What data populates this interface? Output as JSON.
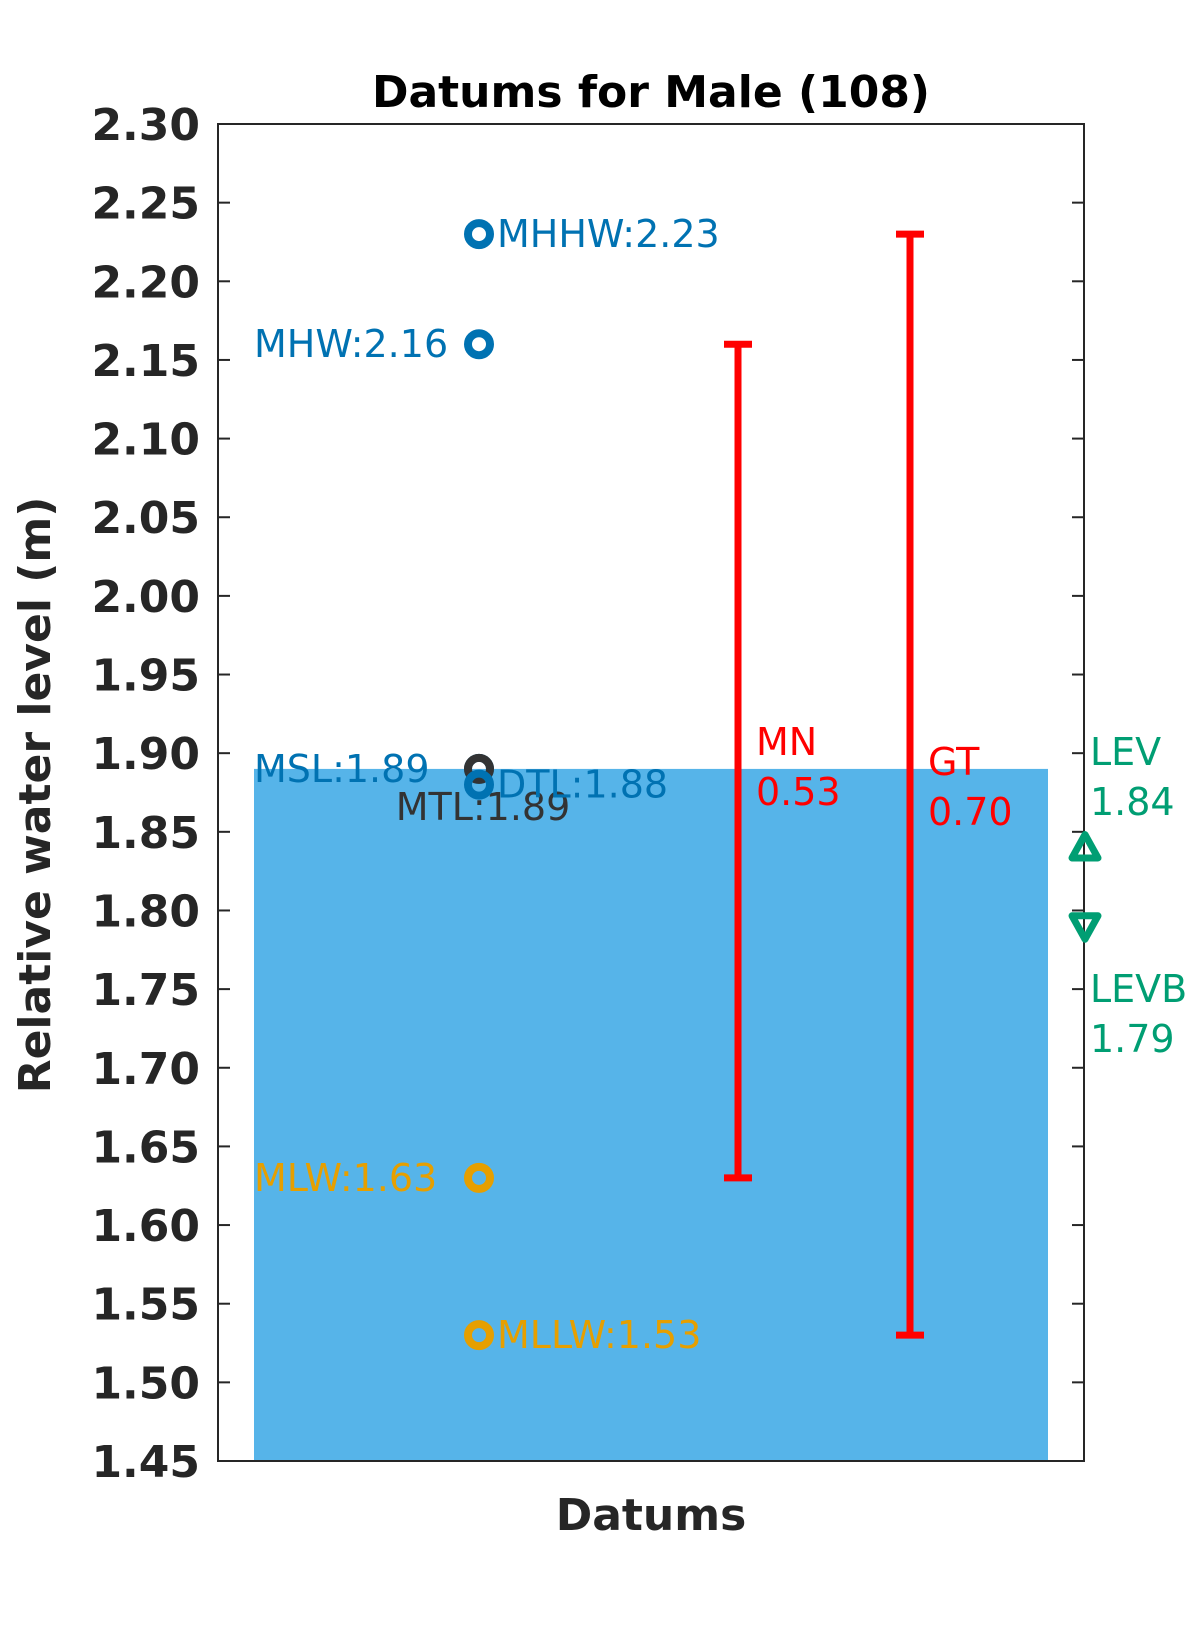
{
  "chart_data": {
    "type": "scatter",
    "title": "Datums for Male (108)",
    "xlabel": "Datums",
    "ylabel": "Relative water level (m)",
    "ylim": [
      1.45,
      2.3
    ],
    "yticks": [
      "2.30",
      "2.25",
      "2.20",
      "2.15",
      "2.10",
      "2.05",
      "2.00",
      "1.95",
      "1.90",
      "1.85",
      "1.80",
      "1.75",
      "1.70",
      "1.65",
      "1.60",
      "1.55",
      "1.50",
      "1.45"
    ],
    "grid": false,
    "msl_fill": {
      "value": 1.89,
      "color": "#56B4E9"
    },
    "datums": [
      {
        "name": "MHHW",
        "value": 2.23,
        "label": "MHHW:2.23",
        "color": "#0072B2",
        "label_side": "right"
      },
      {
        "name": "MHW",
        "value": 2.16,
        "label": "MHW:2.16",
        "color": "#0072B2",
        "label_side": "left"
      },
      {
        "name": "MSL",
        "value": 1.89,
        "label": "MSL:1.89",
        "color": "#0072B2",
        "label_side": "left"
      },
      {
        "name": "MTL",
        "value": 1.89,
        "label": "MTL:1.89",
        "color": "#333333",
        "label_side": "below"
      },
      {
        "name": "DTL",
        "value": 1.88,
        "label": "DTL:1.88",
        "color": "#0072B2",
        "label_side": "right"
      },
      {
        "name": "MLW",
        "value": 1.63,
        "label": "MLW:1.63",
        "color": "#E69F00",
        "label_side": "left"
      },
      {
        "name": "MLLW",
        "value": 1.53,
        "label": "MLLW:1.53",
        "color": "#E69F00",
        "label_side": "right"
      }
    ],
    "ranges": [
      {
        "name": "MN",
        "label": "MN",
        "value_label": "0.53",
        "low": 1.63,
        "high": 2.16,
        "color": "#FF0000"
      },
      {
        "name": "GT",
        "label": "GT",
        "value_label": "0.70",
        "low": 1.53,
        "high": 2.23,
        "color": "#FF0000"
      }
    ],
    "extremes": [
      {
        "name": "LEV",
        "label": "LEV",
        "value_label": "1.84",
        "value": 1.84,
        "marker": "triangle-up",
        "color": "#009E73"
      },
      {
        "name": "LEVB",
        "label": "LEVB",
        "value_label": "1.79",
        "value": 1.79,
        "marker": "triangle-down",
        "color": "#009E73"
      }
    ]
  }
}
